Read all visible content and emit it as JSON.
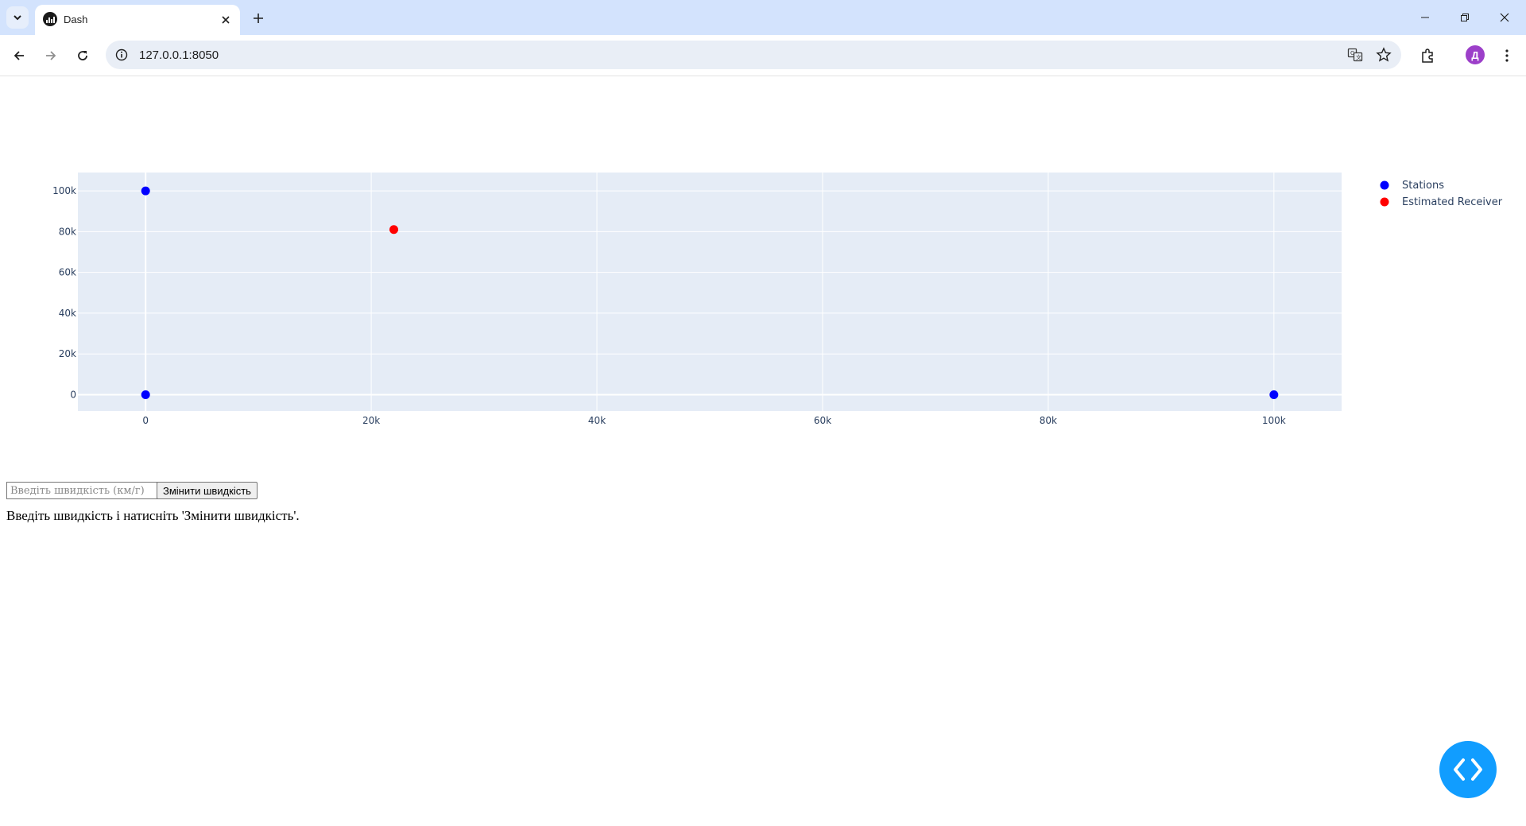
{
  "browser": {
    "tab_title": "Dash",
    "url": "127.0.0.1:8050"
  },
  "form": {
    "speed_placeholder": "Введіть швидкість (км/г)",
    "speed_value": "",
    "button_label": "Змінити швидкість",
    "status": "Введіть швидкість і натисніть 'Змінити швидкість'."
  },
  "colors": {
    "plot_bg": "#e5ecf6",
    "grid": "#ffffff",
    "stations": "#0000ff",
    "receiver": "#ff0000",
    "fab": "#119dff"
  },
  "chart_data": {
    "type": "scatter",
    "title": "",
    "xlabel": "",
    "ylabel": "",
    "xlim": [
      -6000,
      106000
    ],
    "ylim": [
      -8000,
      109000
    ],
    "x_ticks": [
      0,
      20000,
      40000,
      60000,
      80000,
      100000
    ],
    "x_tick_labels": [
      "0",
      "20k",
      "40k",
      "60k",
      "80k",
      "100k"
    ],
    "y_ticks": [
      0,
      20000,
      40000,
      60000,
      80000,
      100000
    ],
    "y_tick_labels": [
      "0",
      "20k",
      "40k",
      "60k",
      "80k",
      "100k"
    ],
    "grid": true,
    "legend_position": "top-right (outside plot)",
    "series": [
      {
        "name": "Stations",
        "color": "#0000ff",
        "x": [
          0,
          100000,
          0
        ],
        "y": [
          0,
          0,
          100000
        ]
      },
      {
        "name": "Estimated Receiver",
        "color": "#ff0000",
        "x": [
          22000
        ],
        "y": [
          81000
        ]
      }
    ]
  },
  "icons": {
    "tab_search": "chevron-down-icon",
    "favicon": "dash-logo-icon",
    "close": "close-icon",
    "new_tab": "plus-icon",
    "back": "arrow-left-icon",
    "forward": "arrow-right-icon",
    "reload": "reload-icon",
    "site_info": "info-icon",
    "translate": "translate-icon",
    "bookmark": "star-icon",
    "extensions": "puzzle-icon",
    "profile_letter": "Д",
    "menu": "kebab-menu-icon",
    "debug": "code-brackets-icon"
  }
}
